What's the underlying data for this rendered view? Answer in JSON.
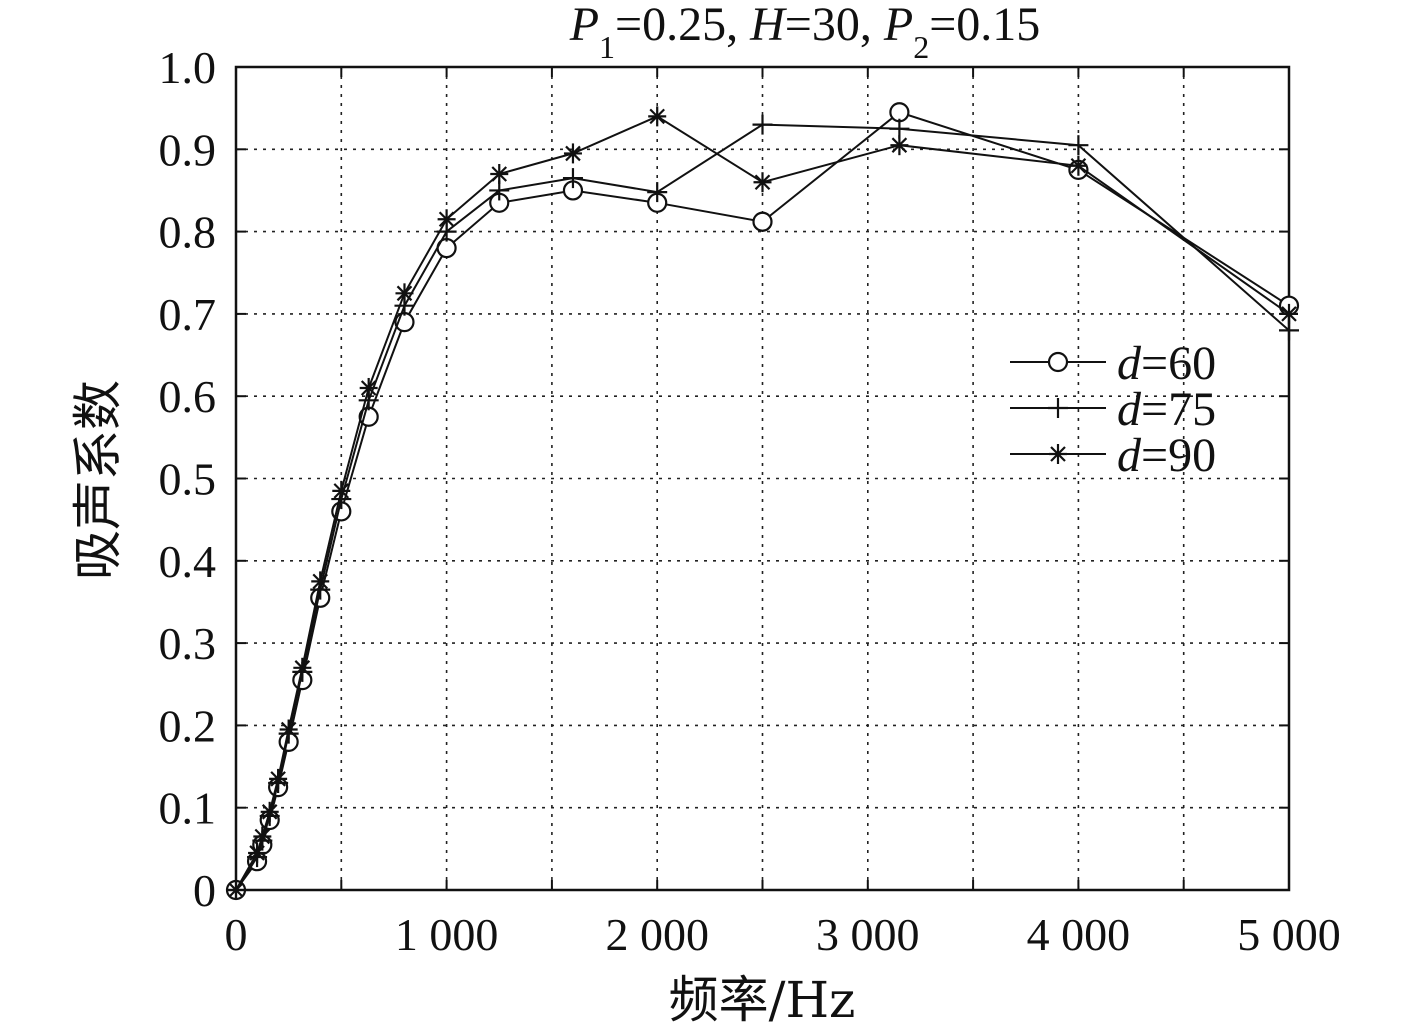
{
  "chart_data": {
    "type": "line",
    "title_parts": [
      {
        "text": "P",
        "italic": true
      },
      {
        "text": "1",
        "sub": true
      },
      {
        "text": "=0.25, "
      },
      {
        "text": "H",
        "italic": true
      },
      {
        "text": "=30, "
      },
      {
        "text": "P",
        "italic": true
      },
      {
        "text": "2",
        "sub": true
      },
      {
        "text": "=0.15"
      }
    ],
    "xlabel": "频率/Hz",
    "ylabel": "吸声系数",
    "xlim": [
      0,
      5000
    ],
    "ylim": [
      0,
      1.0
    ],
    "x_ticks": [
      0,
      1000,
      2000,
      3000,
      4000,
      5000
    ],
    "x_tick_labels": [
      "0",
      "1 000",
      "2 000",
      "3 000",
      "4 000",
      "5 000"
    ],
    "y_ticks": [
      0,
      0.1,
      0.2,
      0.3,
      0.4,
      0.5,
      0.6,
      0.7,
      0.8,
      0.9,
      1.0
    ],
    "y_tick_labels": [
      "0",
      "0.1",
      "0.2",
      "0.3",
      "0.4",
      "0.5",
      "0.6",
      "0.7",
      "0.8",
      "0.9",
      "1.0"
    ],
    "grid": true,
    "legend_position": "right",
    "x": [
      0,
      100,
      125,
      160,
      200,
      250,
      315,
      400,
      500,
      630,
      800,
      1000,
      1250,
      1600,
      2000,
      2500,
      3150,
      4000,
      5000
    ],
    "series": [
      {
        "name": "d=60",
        "label_var": "d",
        "label_value": "=60",
        "marker": "circle",
        "values": [
          0.0,
          0.035,
          0.055,
          0.085,
          0.125,
          0.18,
          0.255,
          0.355,
          0.46,
          0.575,
          0.69,
          0.78,
          0.835,
          0.85,
          0.835,
          0.812,
          0.945,
          0.875,
          0.71
        ]
      },
      {
        "name": "d=75",
        "label_var": "d",
        "label_value": "=75",
        "marker": "plus",
        "values": [
          0.0,
          0.04,
          0.06,
          0.09,
          0.13,
          0.19,
          0.265,
          0.365,
          0.475,
          0.595,
          0.71,
          0.8,
          0.85,
          0.865,
          0.848,
          0.93,
          0.925,
          0.905,
          0.68
        ]
      },
      {
        "name": "d=90",
        "label_var": "d",
        "label_value": "=90",
        "marker": "star",
        "values": [
          0.0,
          0.045,
          0.065,
          0.095,
          0.135,
          0.195,
          0.27,
          0.375,
          0.485,
          0.61,
          0.725,
          0.815,
          0.87,
          0.895,
          0.94,
          0.86,
          0.905,
          0.88,
          0.7
        ]
      }
    ]
  }
}
